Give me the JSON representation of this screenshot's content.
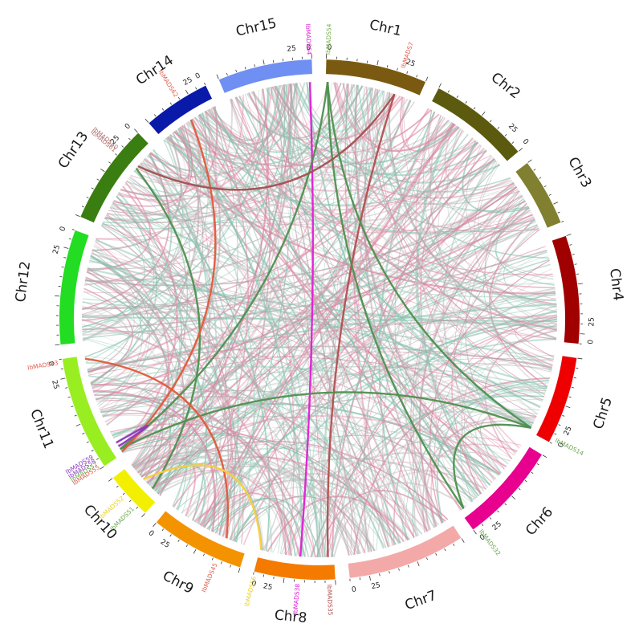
{
  "chromosomes": [
    {
      "name": "Chr1",
      "color": "#7a5a10",
      "start": 0,
      "end": 30,
      "ticks": [
        "0",
        "25"
      ]
    },
    {
      "name": "Chr2",
      "color": "#5b5a0f",
      "start": 0,
      "end": 30,
      "ticks": [
        "25",
        "0"
      ]
    },
    {
      "name": "Chr3",
      "color": "#808030",
      "start": 0,
      "end": 18,
      "ticks": []
    },
    {
      "name": "Chr4",
      "color": "#a00000",
      "start": 0,
      "end": 30,
      "ticks": [
        "25",
        "0"
      ]
    },
    {
      "name": "Chr5",
      "color": "#ee0000",
      "start": 0,
      "end": 30,
      "ticks": [
        "25",
        "0"
      ]
    },
    {
      "name": "Chr6",
      "color": "#e8008f",
      "start": 0,
      "end": 30,
      "ticks": [
        "25",
        "0"
      ]
    },
    {
      "name": "Chr7",
      "color": "#f4a9a9",
      "start": 0,
      "end": 30,
      "ticks": [
        "25",
        "0"
      ]
    },
    {
      "name": "Chr8",
      "color": "#f47b00",
      "start": 0,
      "end": 30,
      "ticks": [
        "25",
        "0"
      ]
    },
    {
      "name": "Chr9",
      "color": "#f49300",
      "start": 0,
      "end": 30,
      "ticks": [
        "25",
        "0"
      ]
    },
    {
      "name": "Chr10",
      "color": "#f2f000",
      "start": 0,
      "end": 18,
      "ticks": []
    },
    {
      "name": "Chr11",
      "color": "#99ee22",
      "start": 0,
      "end": 30,
      "ticks": [
        "25",
        "0"
      ]
    },
    {
      "name": "Chr12",
      "color": "#22dd22",
      "start": 0,
      "end": 30,
      "ticks": [
        "25",
        "0"
      ]
    },
    {
      "name": "Chr13",
      "color": "#3a7d10",
      "start": 0,
      "end": 30,
      "ticks": [
        "25",
        "0"
      ]
    },
    {
      "name": "Chr14",
      "color": "#0a1aa8",
      "start": 0,
      "end": 30,
      "ticks": [
        "25",
        "0"
      ]
    },
    {
      "name": "Chr15",
      "color": "#6f8ff2",
      "start": 0,
      "end": 30,
      "ticks": [
        "25",
        "0"
      ]
    }
  ],
  "genes": [
    {
      "label": "IbMADS64",
      "color": "#e01ed6"
    },
    {
      "label": "IbMADS54",
      "color": "#7ab050"
    },
    {
      "label": "IbMADS7",
      "color": "#e06050"
    },
    {
      "label": "IbMADS14",
      "color": "#6aa84f"
    },
    {
      "label": "IbMADS32",
      "color": "#6aa84f"
    },
    {
      "label": "IbMADS56",
      "color": "#e8d22a"
    },
    {
      "label": "IbMADS38",
      "color": "#e01ed6"
    },
    {
      "label": "IbMADS35",
      "color": "#b05050"
    },
    {
      "label": "IbMADS45",
      "color": "#e06050"
    },
    {
      "label": "IbMADS52",
      "color": "#e8d22a"
    },
    {
      "label": "IbMADS51",
      "color": "#6aa84f"
    },
    {
      "label": "IbMADS63",
      "color": "#e06050"
    },
    {
      "label": "IbMADS59",
      "color": "#8a3ac0"
    },
    {
      "label": "IbMADS58",
      "color": "#8a3ac0"
    },
    {
      "label": "IbMADS57",
      "color": "#6aa84f"
    },
    {
      "label": "IbMADS55",
      "color": "#e06050"
    },
    {
      "label": "IbMADS60",
      "color": "#b07070"
    },
    {
      "label": "IbMADS61",
      "color": "#b07070"
    },
    {
      "label": "IbMADS62",
      "color": "#e06050"
    }
  ],
  "links": [
    {
      "from": "IbMADS64",
      "to": "IbMADS38",
      "color": "#e01ed6"
    },
    {
      "from": "IbMADS7",
      "to": "IbMADS35",
      "color": "#b0504f"
    },
    {
      "from": "IbMADS54",
      "to": "IbMADS57",
      "color": "#4f8f4f"
    },
    {
      "from": "IbMADS54",
      "to": "IbMADS32",
      "color": "#4f8f4f"
    },
    {
      "from": "IbMADS14",
      "to": "IbMADS57",
      "color": "#4f8f4f"
    },
    {
      "from": "IbMADS14",
      "to": "IbMADS32",
      "color": "#4f8f4f"
    },
    {
      "from": "IbMADS51",
      "to": "IbMADS61",
      "color": "#4f8f4f"
    },
    {
      "from": "IbMADS55",
      "to": "IbMADS62",
      "color": "#e05a3a"
    },
    {
      "from": "IbMADS63",
      "to": "IbMADS45",
      "color": "#e05a3a"
    },
    {
      "from": "IbMADS52",
      "to": "IbMADS56",
      "color": "#f4d03a"
    },
    {
      "from": "IbMADS59",
      "to": "IbMADS58",
      "color": "#8a3ac0"
    },
    {
      "from": "IbMADS60",
      "to": "IbMADS7",
      "color": "#a0504f"
    },
    {
      "from": "IbMADS54",
      "to": "IbMADS14",
      "color": "#4f8f4f"
    }
  ]
}
